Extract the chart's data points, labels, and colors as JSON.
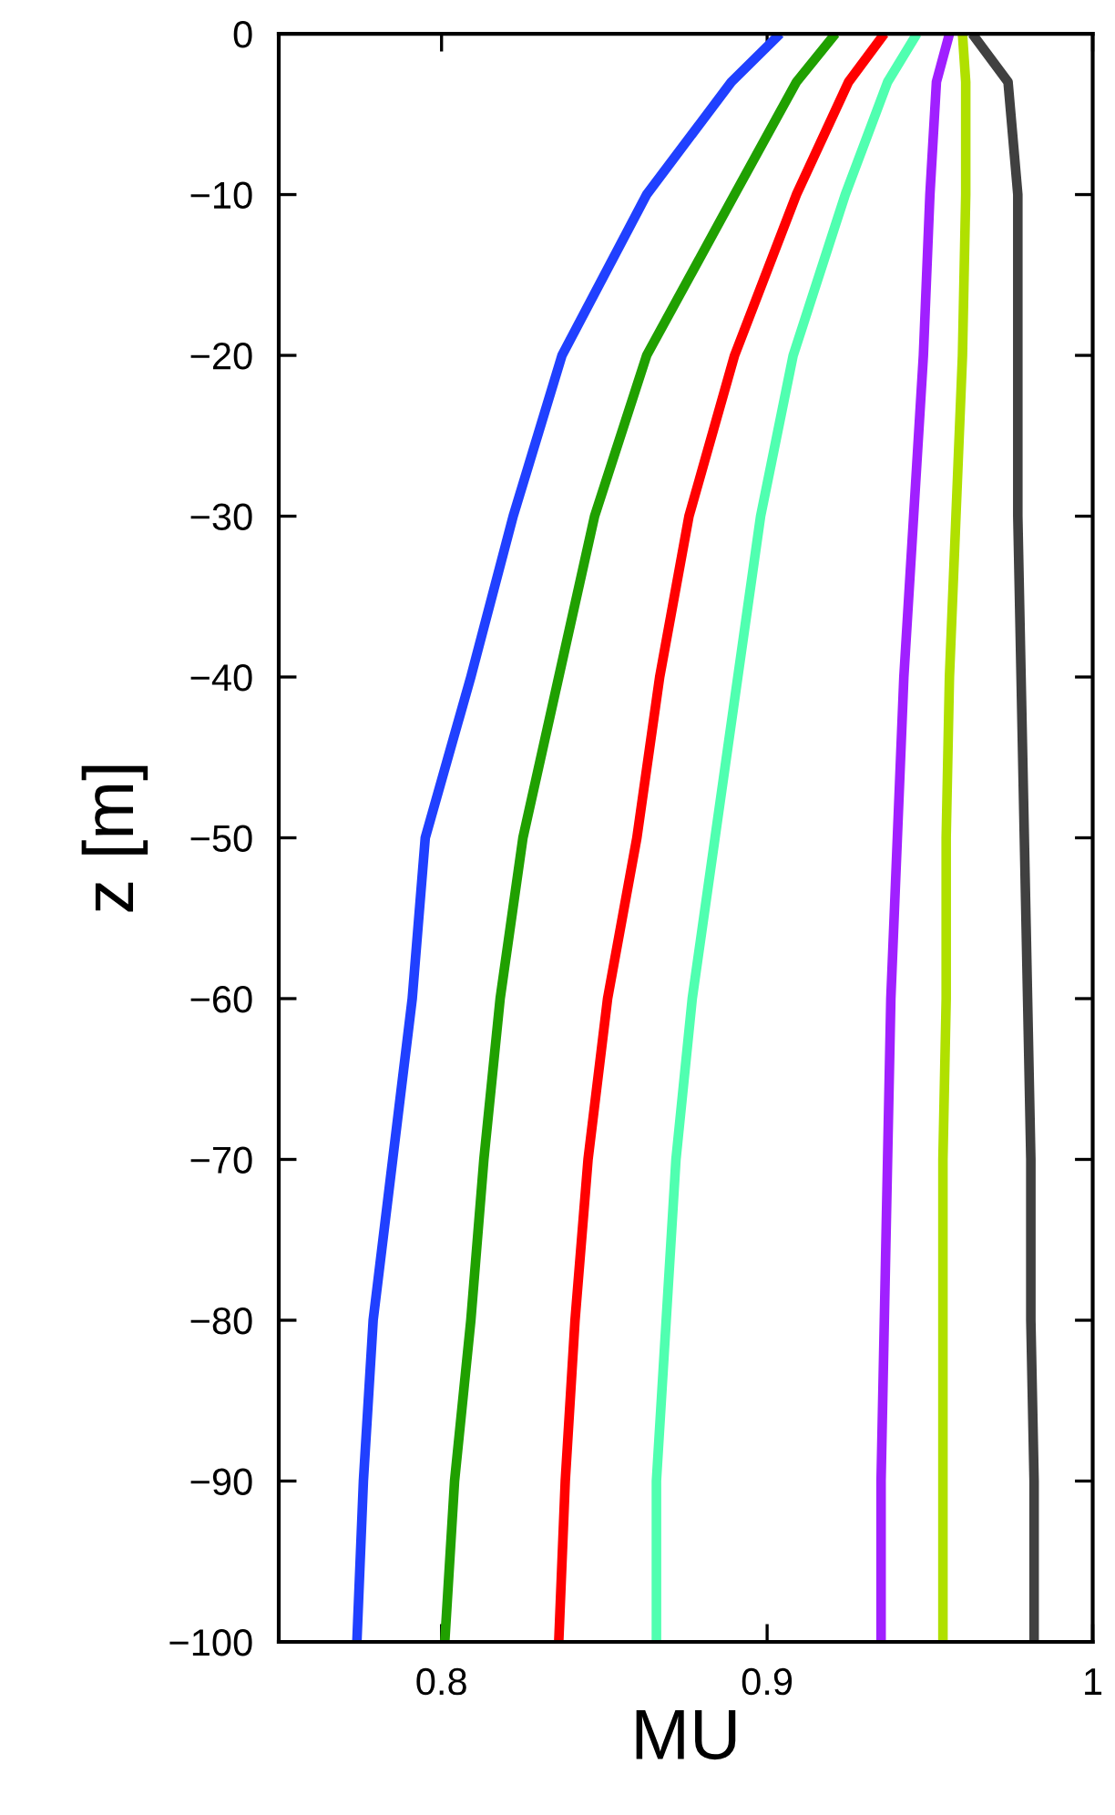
{
  "chart_data": {
    "type": "line",
    "xlabel": "MU",
    "ylabel": "z [m]",
    "xlim": [
      0.75,
      1.0
    ],
    "ylim": [
      -100,
      0
    ],
    "xticks": [
      0.8,
      0.9,
      1
    ],
    "yticks": [
      {
        "value": -100,
        "label": "−100"
      },
      {
        "value": -90,
        "label": "−90"
      },
      {
        "value": -80,
        "label": "−80"
      },
      {
        "value": -70,
        "label": "−70"
      },
      {
        "value": -60,
        "label": "−60"
      },
      {
        "value": -50,
        "label": "−50"
      },
      {
        "value": -40,
        "label": "−40"
      },
      {
        "value": -30,
        "label": "−30"
      },
      {
        "value": -20,
        "label": "−20"
      },
      {
        "value": -10,
        "label": "−10"
      },
      0
    ],
    "marker": "none",
    "line_style": "solid",
    "series": [
      {
        "color": "#2040ff",
        "x": [
          0.904,
          0.889,
          0.863,
          0.837,
          0.822,
          0.809,
          0.795,
          0.791,
          0.785,
          0.779,
          0.776,
          0.774
        ],
        "values": [
          0,
          -3,
          -10,
          -20,
          -30,
          -40,
          -50,
          -60,
          -70,
          -80,
          -90,
          -100
        ]
      },
      {
        "color": "#20a000",
        "x": [
          0.921,
          0.909,
          0.89,
          0.863,
          0.847,
          0.836,
          0.825,
          0.818,
          0.813,
          0.809,
          0.804,
          0.801
        ],
        "values": [
          0,
          -3,
          -10,
          -20,
          -30,
          -40,
          -50,
          -60,
          -70,
          -80,
          -90,
          -100
        ]
      },
      {
        "color": "#ff0000",
        "x": [
          0.936,
          0.925,
          0.909,
          0.89,
          0.876,
          0.867,
          0.86,
          0.851,
          0.845,
          0.841,
          0.838,
          0.836
        ],
        "values": [
          0,
          -3,
          -10,
          -20,
          -30,
          -40,
          -50,
          -60,
          -70,
          -80,
          -90,
          -100
        ]
      },
      {
        "color": "#50ffb0",
        "x": [
          0.946,
          0.937,
          0.924,
          0.908,
          0.898,
          0.891,
          0.884,
          0.877,
          0.872,
          0.869,
          0.866,
          0.866
        ],
        "values": [
          0,
          -3,
          -10,
          -20,
          -30,
          -40,
          -50,
          -60,
          -70,
          -80,
          -90,
          -100
        ]
      },
      {
        "color": "#a020ff",
        "x": [
          0.956,
          0.952,
          0.95,
          0.948,
          0.945,
          0.942,
          0.94,
          0.938,
          0.937,
          0.936,
          0.935,
          0.935
        ],
        "values": [
          0,
          -3,
          -10,
          -20,
          -30,
          -40,
          -50,
          -60,
          -70,
          -80,
          -90,
          -100
        ]
      },
      {
        "color": "#b0e000",
        "x": [
          0.96,
          0.961,
          0.961,
          0.96,
          0.958,
          0.956,
          0.955,
          0.955,
          0.954,
          0.954,
          0.954,
          0.954
        ],
        "values": [
          0,
          -3,
          -10,
          -20,
          -30,
          -40,
          -50,
          -60,
          -70,
          -80,
          -90,
          -100
        ]
      },
      {
        "color": "#404040",
        "x": [
          0.963,
          0.974,
          0.977,
          0.977,
          0.977,
          0.978,
          0.979,
          0.98,
          0.981,
          0.981,
          0.982,
          0.982
        ],
        "values": [
          0,
          -3,
          -10,
          -20,
          -30,
          -40,
          -50,
          -60,
          -70,
          -80,
          -90,
          -100
        ]
      }
    ]
  }
}
